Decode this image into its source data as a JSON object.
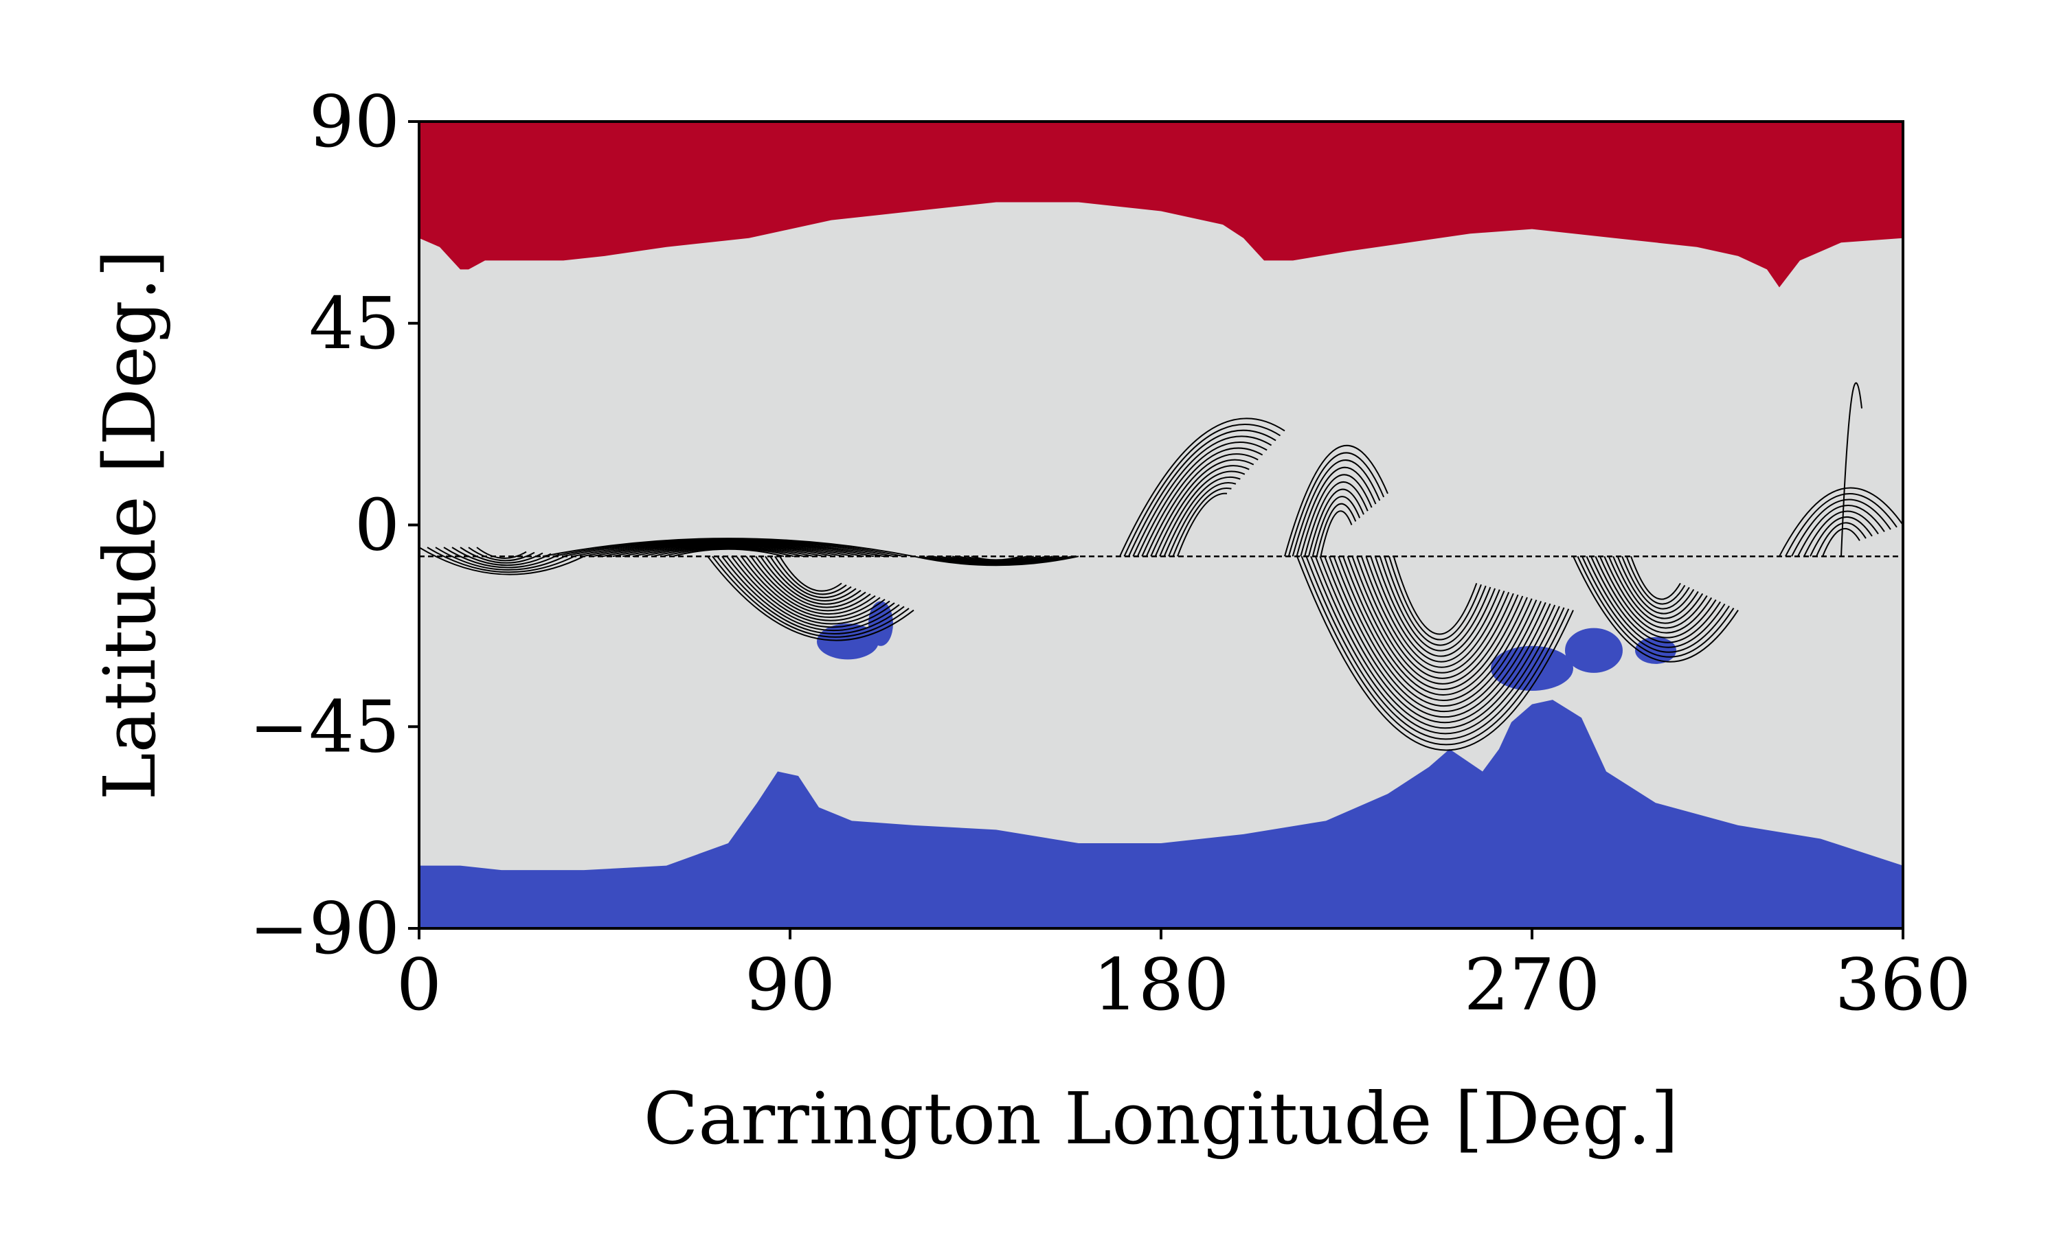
{
  "chart_data": {
    "type": "heatmap",
    "title": "",
    "xlabel": "Carrington Longitude [Deg.]",
    "ylabel": "Latitude [Deg.]",
    "xlim": [
      0,
      360
    ],
    "ylim": [
      -90,
      90
    ],
    "xticks": [
      0,
      90,
      180,
      270,
      360
    ],
    "xtick_labels": [
      "0",
      "90",
      "180",
      "270",
      "360"
    ],
    "yticks": [
      90,
      45,
      0,
      -45,
      -90
    ],
    "ytick_labels": [
      "90",
      "45",
      "0",
      "−45",
      "−90"
    ],
    "grid": false,
    "legend": "none",
    "colors": {
      "positive_polarity": "#b40426",
      "negative_polarity": "#3b4cc0",
      "closed_field": "#dcdddd",
      "field_lines": "#000000"
    },
    "reference_latitude": -7,
    "north_coronal_hole_boundary": [
      [
        0,
        64
      ],
      [
        5,
        62
      ],
      [
        10,
        57
      ],
      [
        12,
        57
      ],
      [
        16,
        59
      ],
      [
        25,
        59
      ],
      [
        35,
        59
      ],
      [
        45,
        60
      ],
      [
        60,
        62
      ],
      [
        80,
        64
      ],
      [
        100,
        68
      ],
      [
        120,
        70
      ],
      [
        140,
        72
      ],
      [
        160,
        72
      ],
      [
        180,
        70
      ],
      [
        195,
        67
      ],
      [
        200,
        64
      ],
      [
        205,
        59
      ],
      [
        212,
        59
      ],
      [
        225,
        61
      ],
      [
        240,
        63
      ],
      [
        255,
        65
      ],
      [
        270,
        66
      ],
      [
        290,
        64
      ],
      [
        310,
        62
      ],
      [
        320,
        60
      ],
      [
        327,
        57
      ],
      [
        330,
        53
      ],
      [
        335,
        59
      ],
      [
        345,
        63
      ],
      [
        360,
        64
      ]
    ],
    "south_coronal_hole_boundary": [
      [
        0,
        -76
      ],
      [
        10,
        -76
      ],
      [
        20,
        -77
      ],
      [
        40,
        -77
      ],
      [
        60,
        -76
      ],
      [
        75,
        -71
      ],
      [
        82,
        -62
      ],
      [
        87,
        -55
      ],
      [
        92,
        -56
      ],
      [
        97,
        -63
      ],
      [
        105,
        -66
      ],
      [
        120,
        -67
      ],
      [
        140,
        -68
      ],
      [
        160,
        -71
      ],
      [
        180,
        -71
      ],
      [
        200,
        -69
      ],
      [
        220,
        -66
      ],
      [
        235,
        -60
      ],
      [
        245,
        -54
      ],
      [
        250,
        -50
      ],
      [
        258,
        -55
      ],
      [
        262,
        -50
      ],
      [
        265,
        -44
      ],
      [
        270,
        -40
      ],
      [
        275,
        -39
      ],
      [
        282,
        -43
      ],
      [
        288,
        -55
      ],
      [
        300,
        -62
      ],
      [
        320,
        -67
      ],
      [
        340,
        -70
      ],
      [
        360,
        -76
      ]
    ],
    "negative_patches": [
      {
        "center": [
          104,
          -26
        ],
        "size": [
          15,
          8
        ]
      },
      {
        "center": [
          112,
          -22
        ],
        "size": [
          6,
          10
        ]
      },
      {
        "center": [
          270,
          -32
        ],
        "size": [
          20,
          10
        ]
      },
      {
        "center": [
          285,
          -28
        ],
        "size": [
          14,
          10
        ]
      },
      {
        "center": [
          300,
          -28
        ],
        "size": [
          10,
          6
        ]
      }
    ],
    "field_line_arcs": [
      {
        "from": [
          0,
          -5
        ],
        "to": [
          40,
          -7
        ],
        "peak": [
          -11
        ],
        "count": 8
      },
      {
        "from": [
          30,
          -7
        ],
        "to": [
          120,
          -7
        ],
        "peak": [
          -3
        ],
        "count": 14
      },
      {
        "from": [
          70,
          -7
        ],
        "to": [
          120,
          -19
        ],
        "peak": [
          -25
        ],
        "count": 16
      },
      {
        "from": [
          120,
          -7
        ],
        "to": [
          160,
          -7
        ],
        "peak": [
          -9
        ],
        "count": 10
      },
      {
        "from": [
          170,
          -7
        ],
        "to": [
          210,
          21
        ],
        "peak": [
          20
        ],
        "count": 14
      },
      {
        "from": [
          210,
          -7
        ],
        "to": [
          235,
          7
        ],
        "peak": [
          17
        ],
        "count": 10
      },
      {
        "from": [
          213,
          -7
        ],
        "to": [
          280,
          -19
        ],
        "peak": [
          -50
        ],
        "count": 22
      },
      {
        "from": [
          280,
          -7
        ],
        "to": [
          320,
          -19
        ],
        "peak": [
          -30
        ],
        "count": 14
      },
      {
        "from": [
          330,
          -7
        ],
        "to": [
          360,
          0
        ],
        "peak": [
          8
        ],
        "count": 8
      },
      {
        "from": [
          345,
          -7
        ],
        "to": [
          350,
          26
        ],
        "peak": [
          28
        ],
        "count": 1
      }
    ]
  }
}
